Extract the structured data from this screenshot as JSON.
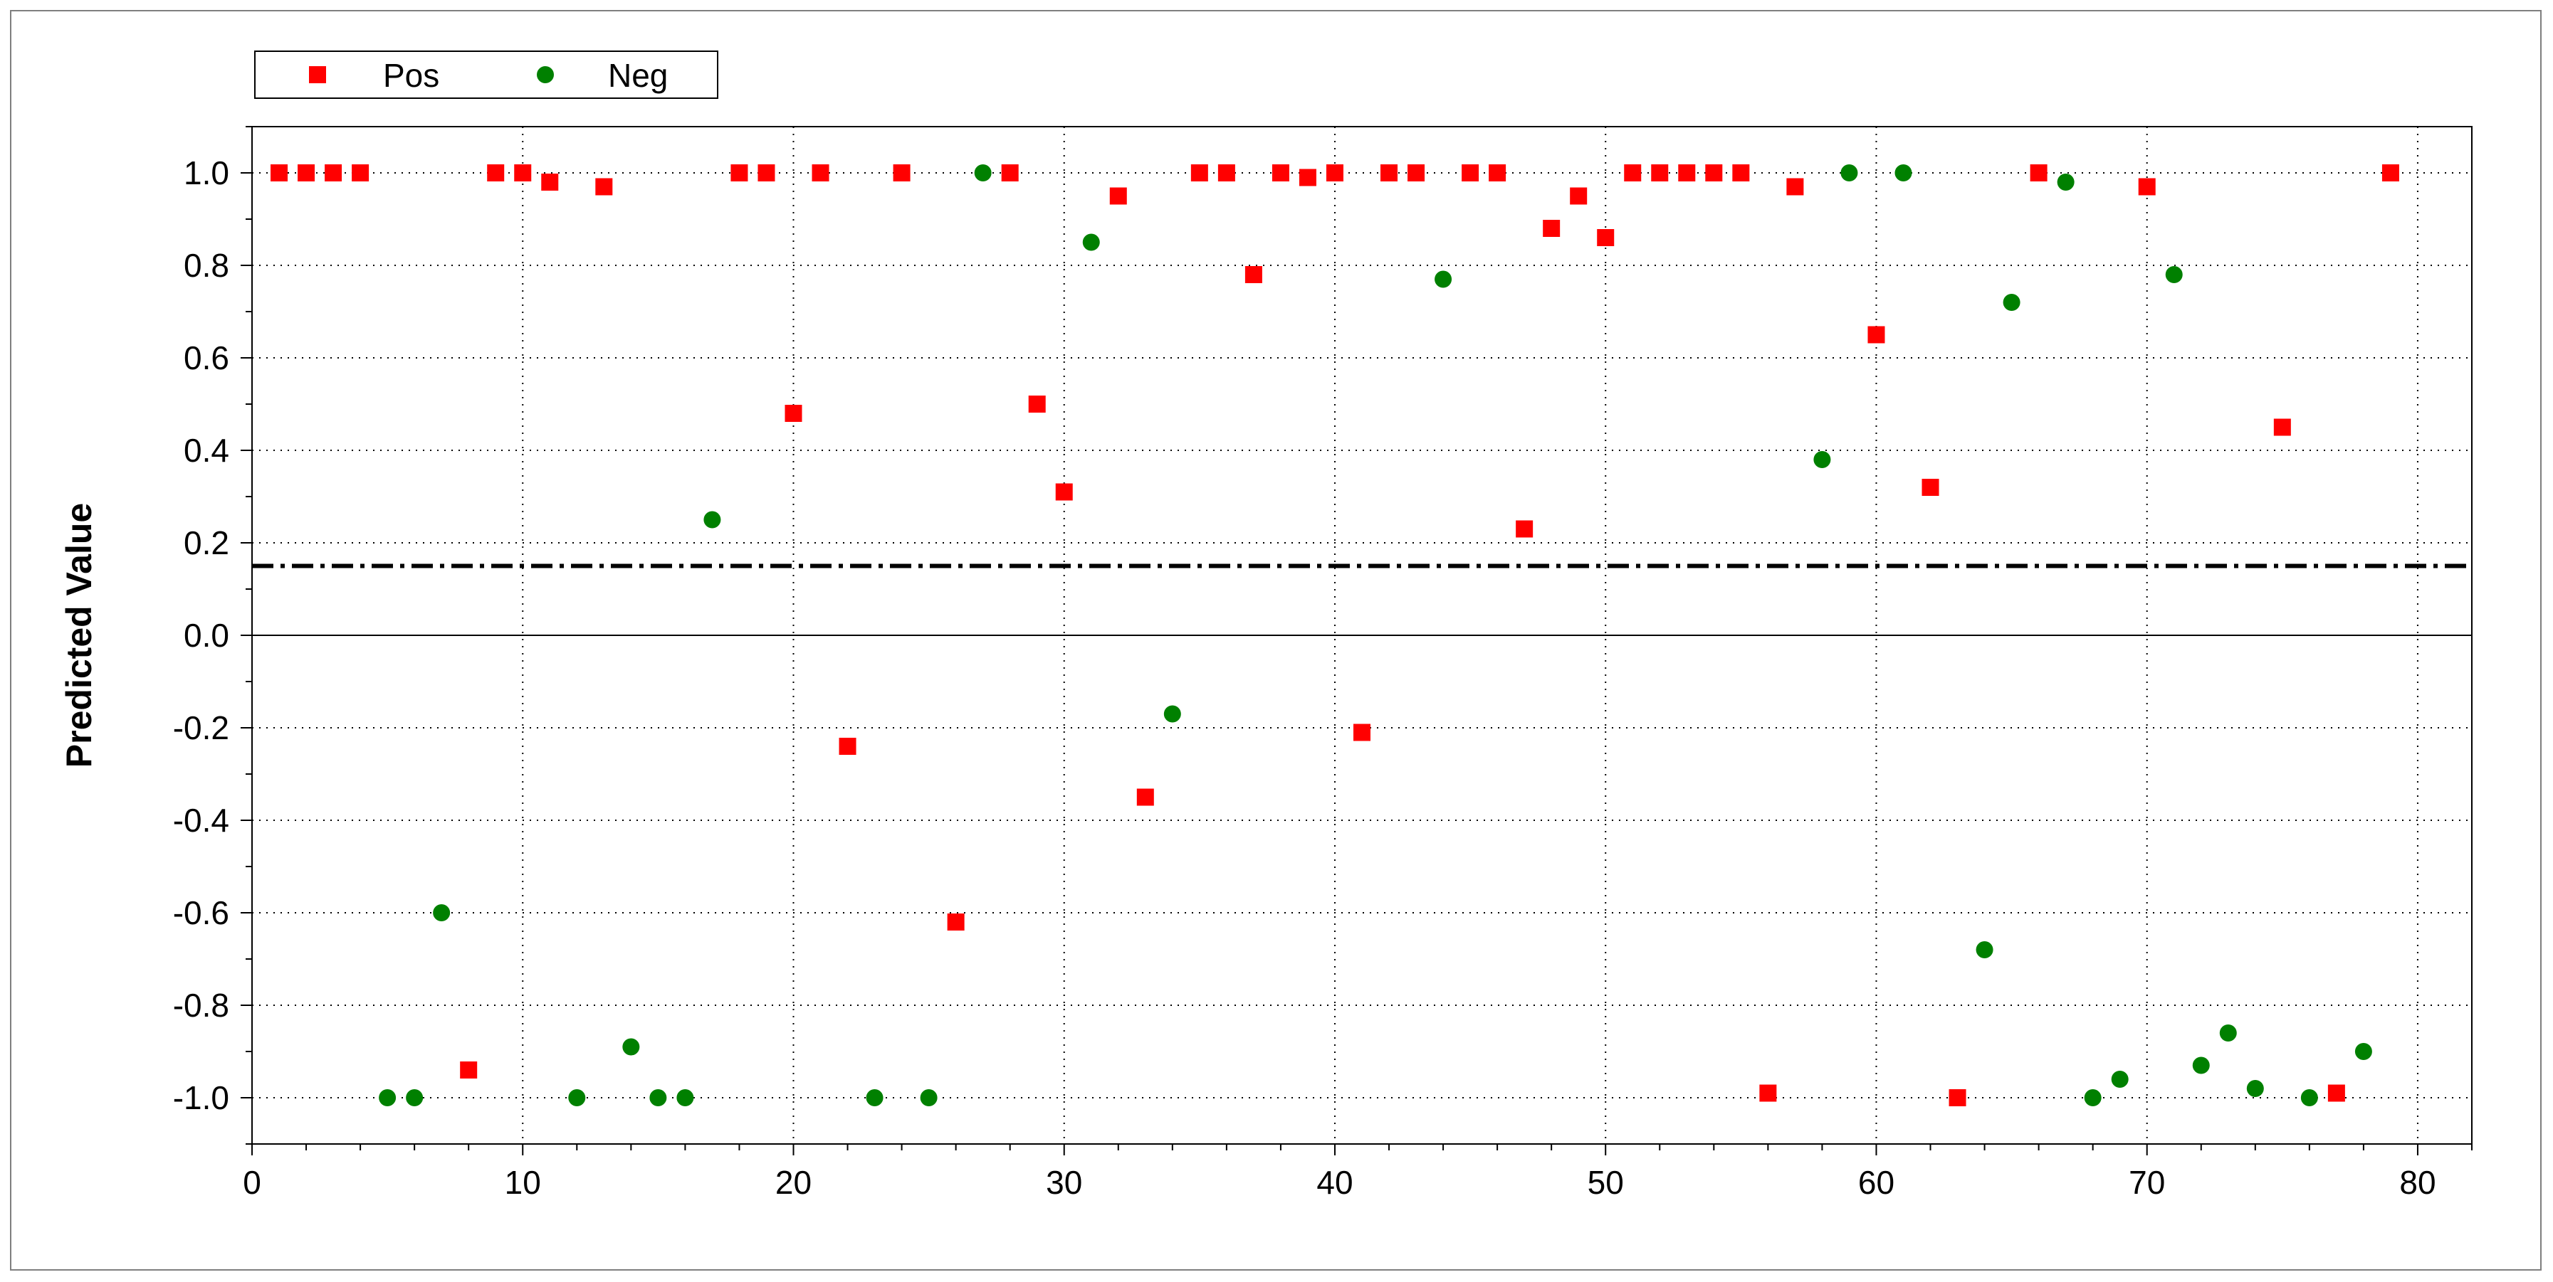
{
  "chart_data": {
    "type": "scatter",
    "title": "",
    "xlabel": "",
    "ylabel": "Predicted Value",
    "xlim": [
      0,
      82
    ],
    "ylim": [
      -1.1,
      1.1
    ],
    "x_ticks": [
      0,
      10,
      20,
      30,
      40,
      50,
      60,
      70,
      80
    ],
    "x_tick_labels": [
      "0",
      "10",
      "20",
      "30",
      "40",
      "50",
      "60",
      "70",
      "80"
    ],
    "y_ticks": [
      1.0,
      0.8,
      0.6,
      0.4,
      0.2,
      0.0,
      -0.2,
      -0.4,
      -0.6,
      -0.8,
      -1.0
    ],
    "y_tick_labels": [
      "1.0",
      "0.8",
      "0.6",
      "0.4",
      "0.2",
      "0.0",
      "-0.2",
      "-0.4",
      "-0.6",
      "-0.8",
      "-1.0"
    ],
    "grid": "dotted",
    "zero_line": 0.0,
    "threshold": 0.15,
    "legend_position": "top-left",
    "series": [
      {
        "name": "Pos",
        "marker": "square",
        "color": "#ff0000",
        "points": [
          [
            1,
            1.0
          ],
          [
            2,
            1.0
          ],
          [
            3,
            1.0
          ],
          [
            4,
            1.0
          ],
          [
            8,
            -0.94
          ],
          [
            9,
            1.0
          ],
          [
            10,
            1.0
          ],
          [
            11,
            0.98
          ],
          [
            13,
            0.97
          ],
          [
            18,
            1.0
          ],
          [
            19,
            1.0
          ],
          [
            20,
            0.48
          ],
          [
            21,
            1.0
          ],
          [
            22,
            -0.24
          ],
          [
            24,
            1.0
          ],
          [
            26,
            -0.62
          ],
          [
            28,
            1.0
          ],
          [
            29,
            0.5
          ],
          [
            30,
            0.31
          ],
          [
            32,
            0.95
          ],
          [
            33,
            -0.35
          ],
          [
            35,
            1.0
          ],
          [
            36,
            1.0
          ],
          [
            37,
            0.78
          ],
          [
            38,
            1.0
          ],
          [
            39,
            0.99
          ],
          [
            40,
            1.0
          ],
          [
            41,
            -0.21
          ],
          [
            42,
            1.0
          ],
          [
            43,
            1.0
          ],
          [
            45,
            1.0
          ],
          [
            46,
            1.0
          ],
          [
            47,
            0.23
          ],
          [
            48,
            0.88
          ],
          [
            49,
            0.95
          ],
          [
            50,
            0.86
          ],
          [
            51,
            1.0
          ],
          [
            52,
            1.0
          ],
          [
            53,
            1.0
          ],
          [
            54,
            1.0
          ],
          [
            55,
            1.0
          ],
          [
            56,
            -0.99
          ],
          [
            57,
            0.97
          ],
          [
            60,
            0.65
          ],
          [
            62,
            0.32
          ],
          [
            63,
            -1.0
          ],
          [
            66,
            1.0
          ],
          [
            70,
            0.97
          ],
          [
            75,
            0.45
          ],
          [
            77,
            -0.99
          ],
          [
            79,
            1.0
          ]
        ]
      },
      {
        "name": "Neg",
        "marker": "circle",
        "color": "#008000",
        "points": [
          [
            5,
            -1.0
          ],
          [
            6,
            -1.0
          ],
          [
            7,
            -0.6
          ],
          [
            12,
            -1.0
          ],
          [
            14,
            -0.89
          ],
          [
            15,
            -1.0
          ],
          [
            16,
            -1.0
          ],
          [
            17,
            0.25
          ],
          [
            23,
            -1.0
          ],
          [
            25,
            -1.0
          ],
          [
            27,
            1.0
          ],
          [
            31,
            0.85
          ],
          [
            34,
            -0.17
          ],
          [
            44,
            0.77
          ],
          [
            58,
            0.38
          ],
          [
            59,
            1.0
          ],
          [
            61,
            1.0
          ],
          [
            64,
            -0.68
          ],
          [
            65,
            0.72
          ],
          [
            67,
            0.98
          ],
          [
            68,
            -1.0
          ],
          [
            69,
            -0.96
          ],
          [
            71,
            0.78
          ],
          [
            72,
            -0.93
          ],
          [
            73,
            -0.86
          ],
          [
            74,
            -0.98
          ],
          [
            76,
            -1.0
          ],
          [
            78,
            -0.9
          ]
        ]
      }
    ]
  }
}
